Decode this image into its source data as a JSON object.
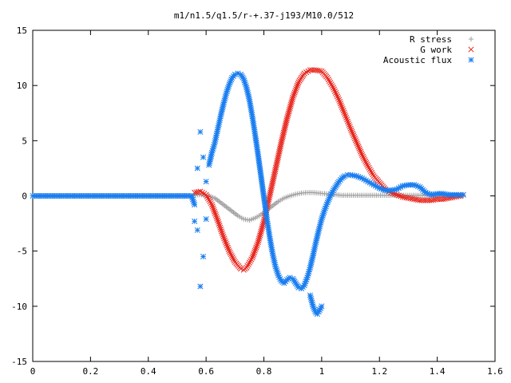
{
  "chart_data": {
    "type": "scatter",
    "title": "m1/n1.5/q1.5/r-+.37-j193/M10.0/512",
    "xlabel": "",
    "ylabel": "",
    "xlim": [
      0,
      1.6
    ],
    "ylim": [
      -15,
      15
    ],
    "x_ticks": [
      "0",
      "0.2",
      "0.4",
      "0.6",
      "0.8",
      "1",
      "1.2",
      "1.4",
      "1.6"
    ],
    "y_ticks": [
      "15",
      "10",
      "5",
      "0",
      "-5",
      "-10",
      "-15"
    ],
    "grid": false,
    "legend_position": "top-right",
    "series": [
      {
        "name": "R stress",
        "marker": "+",
        "color": "#a0a0a0",
        "x": [
          0.0,
          0.1,
          0.2,
          0.3,
          0.4,
          0.5,
          0.55,
          0.57,
          0.59,
          0.61,
          0.63,
          0.65,
          0.67,
          0.69,
          0.71,
          0.73,
          0.75,
          0.77,
          0.79,
          0.81,
          0.83,
          0.85,
          0.87,
          0.89,
          0.91,
          0.93,
          0.95,
          0.97,
          0.99,
          1.01,
          1.03,
          1.05,
          1.07,
          1.09,
          1.11,
          1.13,
          1.15,
          1.17,
          1.19,
          1.21,
          1.23,
          1.25,
          1.27,
          1.29,
          1.31,
          1.33,
          1.35,
          1.37,
          1.39,
          1.41,
          1.43,
          1.45,
          1.47,
          1.49
        ],
        "y": [
          0,
          0,
          0,
          0,
          0,
          0,
          0,
          0.1,
          0.1,
          0,
          -0.2,
          -0.6,
          -1.0,
          -1.4,
          -1.8,
          -2.1,
          -2.2,
          -2.0,
          -1.7,
          -1.3,
          -0.9,
          -0.5,
          -0.2,
          0,
          0.15,
          0.25,
          0.3,
          0.3,
          0.25,
          0.2,
          0.15,
          0.1,
          0.05,
          0.05,
          0.05,
          0.05,
          0.05,
          0.05,
          0.05,
          0.05,
          0.05,
          0.05,
          0.05,
          0.05,
          0.05,
          0.05,
          0.05,
          0.05,
          0.05,
          0.05,
          0.05,
          0.05,
          0.05,
          0
        ]
      },
      {
        "name": "G work",
        "marker": "x",
        "color": "#e8231a",
        "x": [
          0.56,
          0.58,
          0.6,
          0.62,
          0.64,
          0.66,
          0.68,
          0.7,
          0.72,
          0.73,
          0.74,
          0.76,
          0.78,
          0.8,
          0.82,
          0.84,
          0.86,
          0.88,
          0.9,
          0.92,
          0.94,
          0.96,
          0.98,
          1.0,
          1.02,
          1.04,
          1.06,
          1.08,
          1.1,
          1.12,
          1.14,
          1.16,
          1.18,
          1.2,
          1.22,
          1.24,
          1.26,
          1.28,
          1.3,
          1.32,
          1.34,
          1.36,
          1.38,
          1.4,
          1.42,
          1.44,
          1.46,
          1.48,
          1.49
        ],
        "y": [
          0.3,
          0.4,
          0.1,
          -0.8,
          -2.2,
          -3.7,
          -5.0,
          -6.0,
          -6.6,
          -6.7,
          -6.5,
          -5.6,
          -4.2,
          -2.3,
          0.0,
          2.4,
          4.8,
          7.0,
          8.9,
          10.3,
          11.1,
          11.4,
          11.4,
          11.3,
          10.7,
          9.8,
          8.7,
          7.4,
          6.1,
          4.9,
          3.7,
          2.7,
          1.8,
          1.2,
          0.6,
          0.3,
          0.1,
          -0.1,
          -0.2,
          -0.3,
          -0.4,
          -0.4,
          -0.4,
          -0.3,
          -0.3,
          -0.2,
          -0.1,
          0.0,
          0.1
        ]
      },
      {
        "name": "Acoustic flux",
        "marker": "*",
        "color": "#1a7ef0",
        "x": [
          0.0,
          0.05,
          0.1,
          0.15,
          0.2,
          0.25,
          0.3,
          0.35,
          0.4,
          0.45,
          0.5,
          0.55,
          0.56,
          0.56,
          0.57,
          0.57,
          0.58,
          0.58,
          0.59,
          0.59,
          0.6,
          0.6,
          0.61,
          0.62,
          0.63,
          0.64,
          0.65,
          0.66,
          0.67,
          0.68,
          0.69,
          0.7,
          0.71,
          0.72,
          0.73,
          0.74,
          0.75,
          0.76,
          0.77,
          0.78,
          0.79,
          0.8,
          0.81,
          0.82,
          0.83,
          0.84,
          0.85,
          0.86,
          0.87,
          0.88,
          0.89,
          0.9,
          0.91,
          0.92,
          0.93,
          0.94,
          0.95,
          0.96,
          0.97,
          0.98,
          0.99,
          1.0,
          1.01,
          1.02,
          1.03,
          1.04,
          1.05,
          1.06,
          1.07,
          1.08,
          1.09,
          1.1,
          1.12,
          1.14,
          1.16,
          1.18,
          1.2,
          1.22,
          1.24,
          1.26,
          1.28,
          1.3,
          1.32,
          1.34,
          1.36,
          1.38,
          1.4,
          1.42,
          1.44,
          1.46,
          1.48,
          1.49
        ],
        "y": [
          0,
          0,
          0,
          0,
          0,
          0,
          0,
          0,
          0,
          0,
          0,
          0,
          -0.8,
          -2.3,
          2.5,
          -3.1,
          5.8,
          -8.2,
          3.5,
          -5.5,
          1.3,
          -2.1,
          2.8,
          3.9,
          4.8,
          6.0,
          7.2,
          8.3,
          9.3,
          10.1,
          10.7,
          11.0,
          11.1,
          11.0,
          10.6,
          9.8,
          8.7,
          7.2,
          5.5,
          3.7,
          1.8,
          -0.1,
          -2.0,
          -3.7,
          -5.2,
          -6.4,
          -7.2,
          -7.7,
          -7.9,
          -7.6,
          -7.4,
          -7.5,
          -7.9,
          -8.3,
          -8.4,
          -8.1,
          -7.4,
          -6.5,
          -5.4,
          -4.2,
          -3.1,
          -2.1,
          -1.3,
          -0.6,
          0.0,
          0.5,
          0.9,
          1.3,
          1.6,
          1.8,
          1.9,
          1.9,
          1.8,
          1.6,
          1.3,
          1.0,
          0.7,
          0.5,
          0.5,
          0.6,
          0.9,
          1.0,
          1.0,
          0.8,
          0.3,
          0.1,
          0.2,
          0.2,
          0.1,
          0.1,
          0.1,
          0.1
        ]
      },
      {
        "name": "",
        "marker": "*",
        "color": "#1a7ef0",
        "x": [
          0.96,
          0.97,
          0.98,
          0.985,
          0.99,
          1.0
        ],
        "y": [
          -9.0,
          -10.0,
          -10.6,
          -10.7,
          -10.5,
          -10.0
        ]
      }
    ]
  }
}
